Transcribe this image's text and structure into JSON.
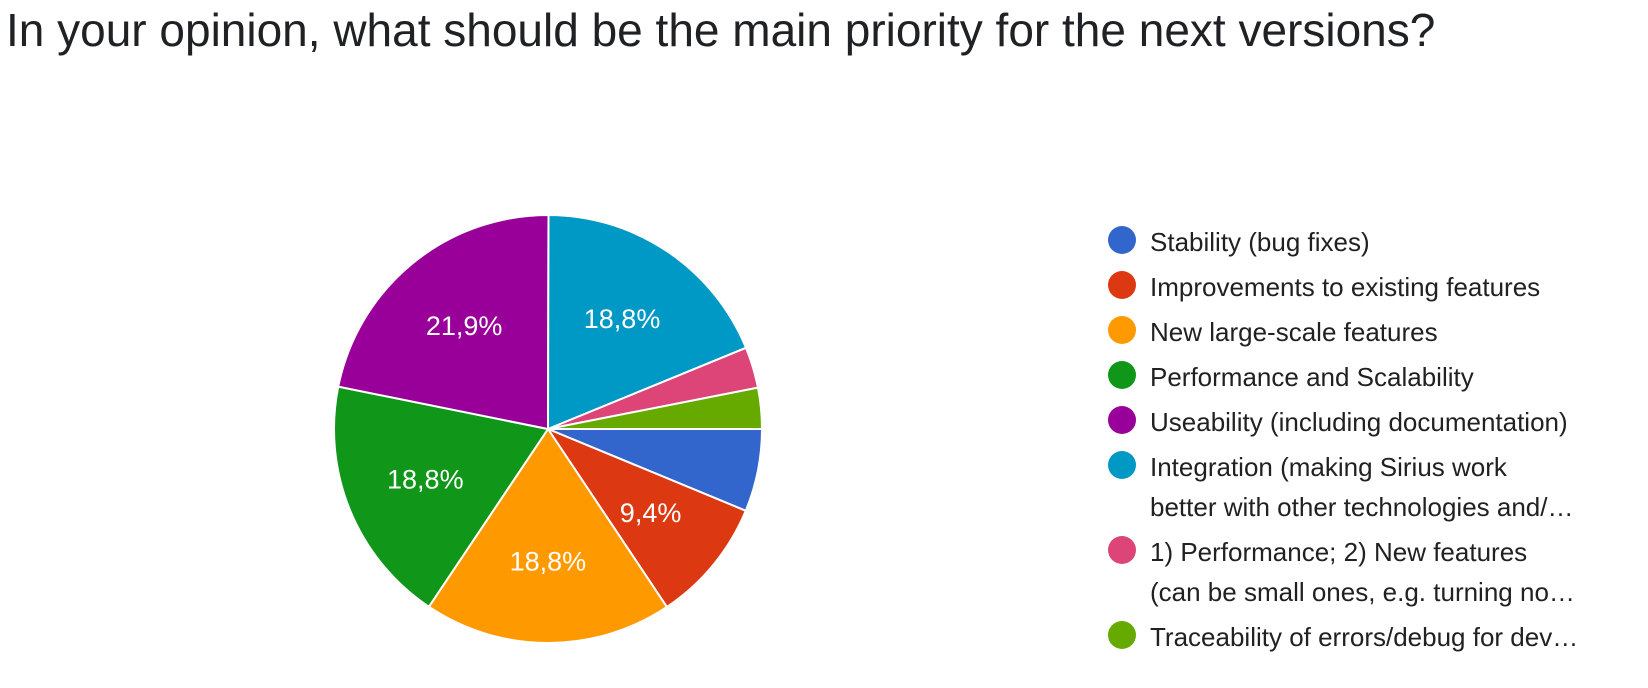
{
  "title": "In your opinion, what should be the main priority for the next versions?",
  "chart_data": {
    "type": "pie",
    "title": "In your opinion, what should be the main priority for the next versions?",
    "legend_position": "right",
    "slices": [
      {
        "label": "Stability (bug fixes)",
        "legend_lines": [
          "Stability (bug fixes)"
        ],
        "value": 6.25,
        "color": "#3366cc",
        "display": ""
      },
      {
        "label": "Improvements to existing features",
        "legend_lines": [
          "Improvements to existing features"
        ],
        "value": 9.4,
        "color": "#dc3912",
        "display": "9,4%"
      },
      {
        "label": "New large-scale features",
        "legend_lines": [
          "New large-scale features"
        ],
        "value": 18.8,
        "color": "#ff9900",
        "display": "18,8%"
      },
      {
        "label": "Performance and Scalability",
        "legend_lines": [
          "Performance and Scalability"
        ],
        "value": 18.8,
        "color": "#109618",
        "display": "18,8%"
      },
      {
        "label": "Useability (including documentation)",
        "legend_lines": [
          "Useability (including documentation)"
        ],
        "value": 21.9,
        "color": "#990099",
        "display": "21,9%"
      },
      {
        "label": "Integration (making Sirius work better with other technologies and/…",
        "legend_lines": [
          "Integration (making Sirius work",
          "better with other technologies and/…"
        ],
        "value": 18.8,
        "color": "#0099c6",
        "display": "18,8%"
      },
      {
        "label": "1) Performance; 2) New features (can be small ones, e.g. turning no…",
        "legend_lines": [
          "1) Performance; 2) New features",
          "(can be small ones, e.g. turning no…"
        ],
        "value": 3.1,
        "color": "#dd4477",
        "display": ""
      },
      {
        "label": "Traceability of errors/debug for dev…",
        "legend_lines": [
          "Traceability of errors/debug for dev…"
        ],
        "value": 3.1,
        "color": "#66aa00",
        "display": ""
      }
    ]
  }
}
